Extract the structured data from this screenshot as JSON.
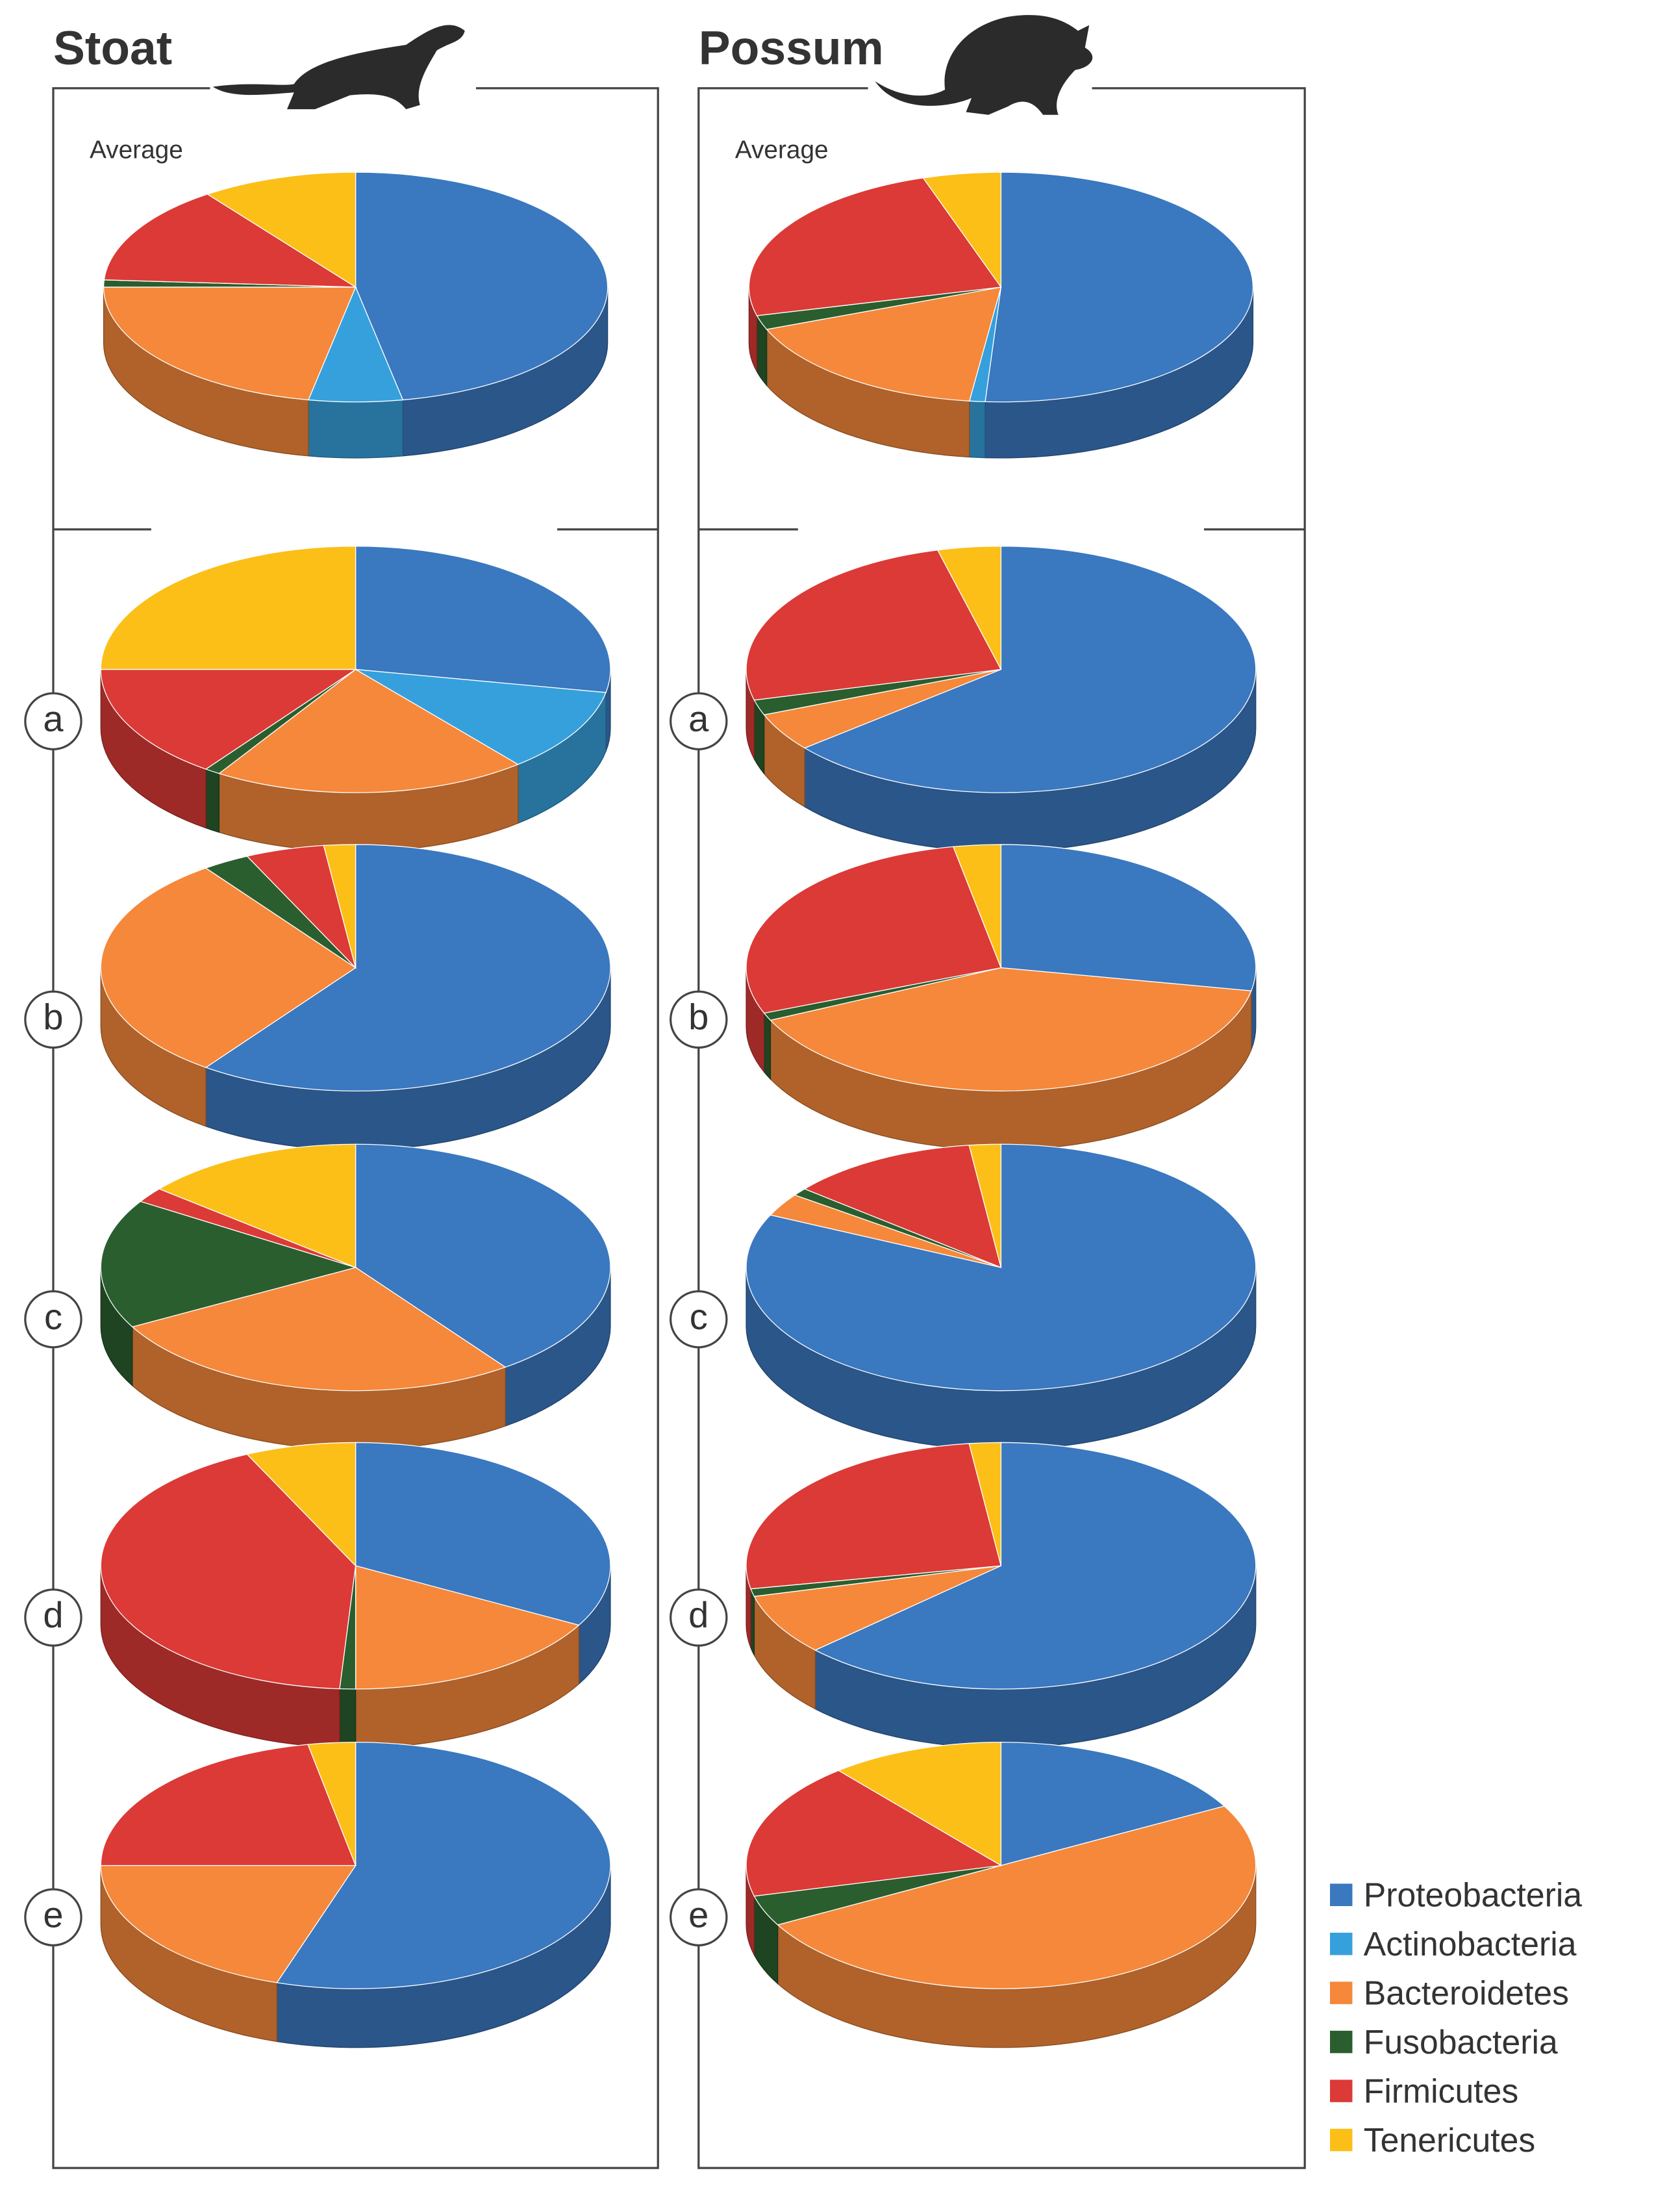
{
  "groups": [
    "Stoat",
    "Possum"
  ],
  "legend": {
    "categories": [
      "Proteobacteria",
      "Actinobacteria",
      "Bacteroidetes",
      "Fusobacteria",
      "Firmicutes",
      "Tenericutes"
    ],
    "colors": [
      "#3a78c0",
      "#36a0dc",
      "#f5883a",
      "#2a5e2e",
      "#db3a36",
      "#fcbf18"
    ]
  },
  "chart_data": [
    {
      "type": "pie",
      "title": "Average",
      "values": [
        47,
        6,
        22,
        1,
        14,
        10
      ]
    },
    {
      "type": "pie",
      "title": "a",
      "values": [
        28,
        11,
        20,
        1,
        15,
        25
      ]
    },
    {
      "type": "pie",
      "title": "b",
      "values": [
        60,
        0,
        30,
        3,
        5,
        2
      ]
    },
    {
      "type": "pie",
      "title": "c",
      "values": [
        40,
        0,
        27,
        17,
        2,
        14
      ]
    },
    {
      "type": "pie",
      "title": "d",
      "values": [
        33,
        0,
        17,
        1,
        42,
        7
      ]
    },
    {
      "type": "pie",
      "title": "e",
      "values": [
        55,
        0,
        20,
        0,
        22,
        3
      ]
    },
    {
      "type": "pie",
      "title": "Average",
      "values": [
        51,
        1,
        17,
        2,
        24,
        5
      ]
    },
    {
      "type": "pie",
      "title": "a",
      "values": [
        64,
        0,
        5,
        2,
        25,
        4
      ]
    },
    {
      "type": "pie",
      "title": "b",
      "values": [
        28,
        0,
        40,
        1,
        28,
        3
      ]
    },
    {
      "type": "pie",
      "title": "c",
      "values": [
        82,
        0,
        3,
        1,
        12,
        2
      ]
    },
    {
      "type": "pie",
      "title": "d",
      "values": [
        63,
        0,
        8,
        1,
        26,
        2
      ]
    },
    {
      "type": "pie",
      "title": "e",
      "values": [
        17,
        0,
        50,
        4,
        18,
        11
      ]
    }
  ]
}
